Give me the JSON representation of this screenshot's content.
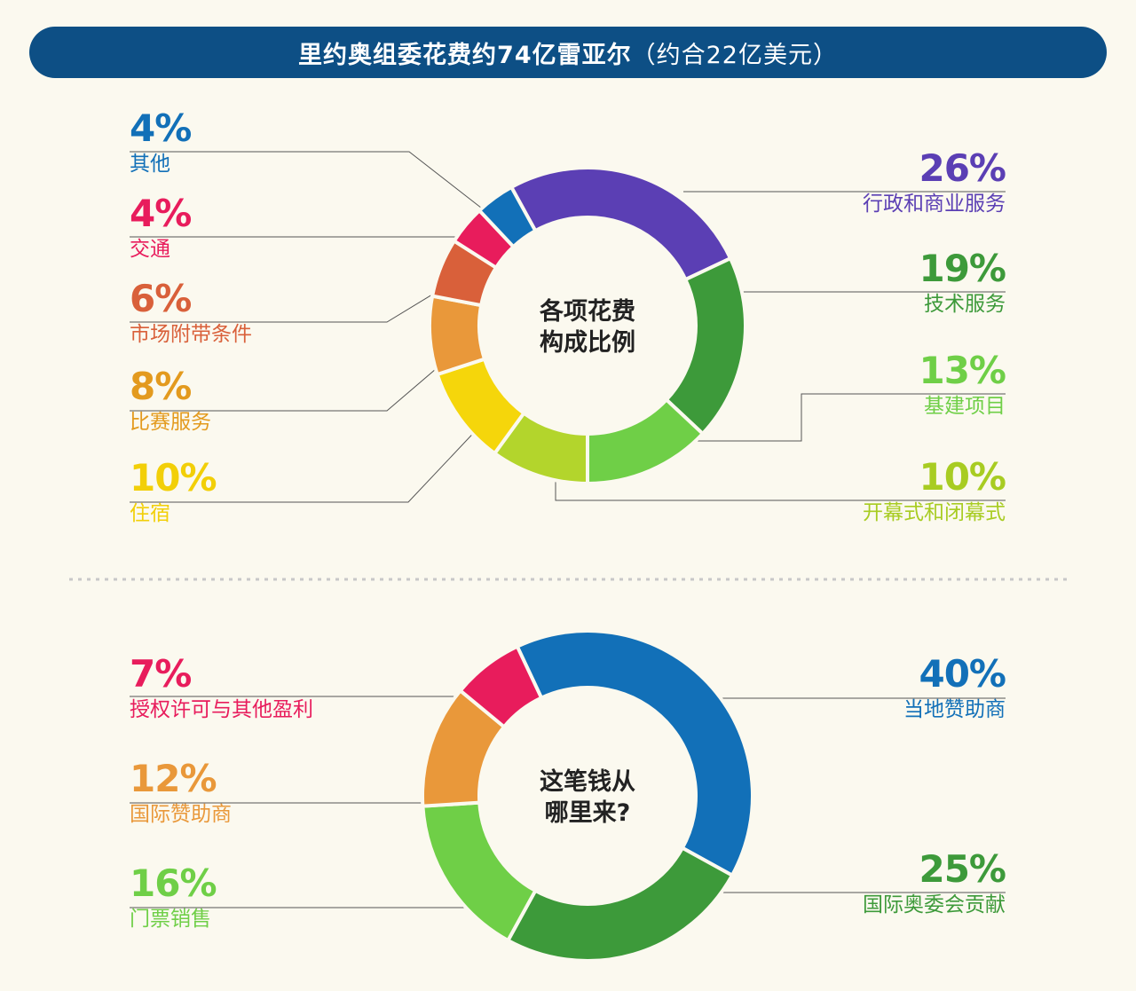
{
  "title": {
    "main": "里约奥组委花费约74亿雷亚尔",
    "sub": "（约合22亿美元）"
  },
  "chart_data": [
    {
      "type": "pie",
      "center_label": [
        "各项花费",
        "构成比例"
      ],
      "slices": [
        {
          "label": "行政和商业服务",
          "value": 26,
          "pct_text": "26%",
          "color": "#5b3fb4"
        },
        {
          "label": "技术服务",
          "value": 19,
          "pct_text": "19%",
          "color": "#3d9a3a"
        },
        {
          "label": "基建项目",
          "value": 13,
          "pct_text": "13%",
          "color": "#6fcf47"
        },
        {
          "label": "开幕式和闭幕式",
          "value": 10,
          "pct_text": "10%",
          "color": "#b3d52c"
        },
        {
          "label": "住宿",
          "value": 10,
          "pct_text": "10%",
          "color": "#f5d60b"
        },
        {
          "label": "比赛服务",
          "value": 8,
          "pct_text": "8%",
          "color": "#e9983a"
        },
        {
          "label": "市场附带条件",
          "value": 6,
          "pct_text": "6%",
          "color": "#d9603a"
        },
        {
          "label": "交通",
          "value": 4,
          "pct_text": "4%",
          "color": "#e81c5c"
        },
        {
          "label": "其他",
          "value": 4,
          "pct_text": "4%",
          "color": "#1270b8"
        }
      ]
    },
    {
      "type": "pie",
      "center_label": [
        "这笔钱从",
        "哪里来?"
      ],
      "slices": [
        {
          "label": "当地赞助商",
          "value": 40,
          "pct_text": "40%",
          "color": "#1270b8"
        },
        {
          "label": "国际奥委会贡献",
          "value": 25,
          "pct_text": "25%",
          "color": "#3d9a3a"
        },
        {
          "label": "门票销售",
          "value": 16,
          "pct_text": "16%",
          "color": "#6fcf47"
        },
        {
          "label": "国际赞助商",
          "value": 12,
          "pct_text": "12%",
          "color": "#e9983a"
        },
        {
          "label": "授权许可与其他盈利",
          "value": 7,
          "pct_text": "7%",
          "color": "#e81c5c"
        }
      ]
    }
  ]
}
